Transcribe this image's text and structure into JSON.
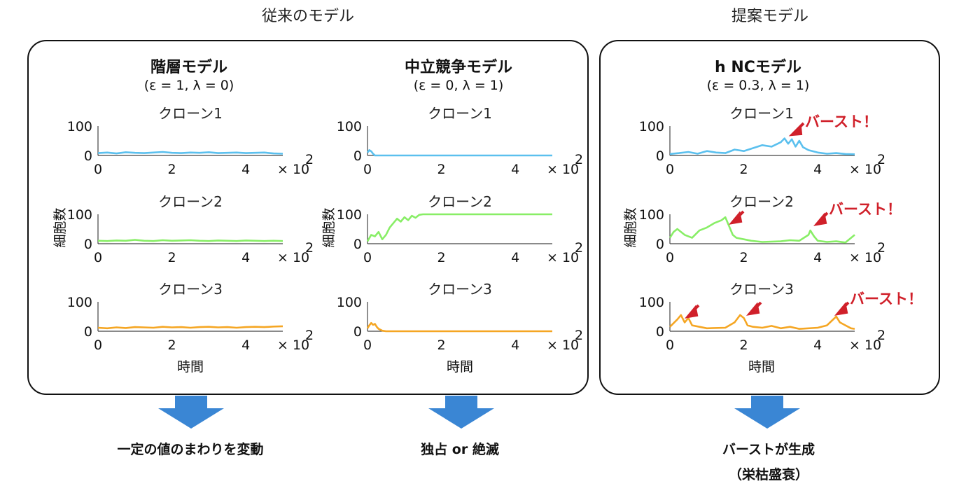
{
  "group_labels": {
    "conventional": "従来のモデル",
    "proposed": "提案モデル"
  },
  "models": [
    {
      "name": "階層モデル",
      "params": "(ε = 1, λ = 0)",
      "result": "一定の値のまわりを変動",
      "result_sub": ""
    },
    {
      "name": "中立競争モデル",
      "params": "(ε = 0, λ = 1)",
      "result": "独占 or 絶滅",
      "result_sub": ""
    },
    {
      "name": "h NCモデル",
      "params": "(ε = 0.3, λ = 1)",
      "result": "バーストが生成",
      "result_sub": "（栄枯盛衰）"
    }
  ],
  "clone_titles": [
    "クローン1",
    "クローン2",
    "クローン3"
  ],
  "axes": {
    "y_ticks": [
      "0",
      "100"
    ],
    "x_ticks": [
      "0",
      "2",
      "4"
    ],
    "x_exponent": "× 10",
    "x_exponent_power": "2",
    "ylabel": "細胞数",
    "xlabel": "時間",
    "xlim": [
      0,
      500
    ],
    "ylim": [
      0,
      100
    ]
  },
  "burst_label": "バースト！",
  "colors": {
    "clone1": "#5bc0ee",
    "clone2": "#88ee66",
    "clone3": "#f5a623",
    "arrow_down": "#3a86d4",
    "burst": "#d0202a"
  },
  "chart_data": [
    {
      "type": "line",
      "model": "階層モデル",
      "clone": "クローン1",
      "x": [
        0,
        25,
        50,
        75,
        100,
        125,
        150,
        175,
        200,
        225,
        250,
        275,
        300,
        325,
        350,
        375,
        400,
        425,
        450,
        475,
        500
      ],
      "y": [
        8,
        10,
        7,
        11,
        9,
        8,
        10,
        12,
        9,
        8,
        10,
        9,
        11,
        8,
        9,
        10,
        8,
        9,
        10,
        7,
        6
      ]
    },
    {
      "type": "line",
      "model": "階層モデル",
      "clone": "クローン2",
      "x": [
        0,
        25,
        50,
        75,
        100,
        125,
        150,
        175,
        200,
        225,
        250,
        275,
        300,
        325,
        350,
        375,
        400,
        425,
        450,
        475,
        500
      ],
      "y": [
        10,
        9,
        11,
        10,
        13,
        10,
        9,
        12,
        10,
        11,
        12,
        10,
        9,
        11,
        10,
        9,
        11,
        10,
        9,
        10,
        9
      ]
    },
    {
      "type": "line",
      "model": "階層モデル",
      "clone": "クローン3",
      "x": [
        0,
        25,
        50,
        75,
        100,
        125,
        150,
        175,
        200,
        225,
        250,
        275,
        300,
        325,
        350,
        375,
        400,
        425,
        450,
        475,
        500
      ],
      "y": [
        12,
        10,
        13,
        11,
        14,
        13,
        12,
        15,
        13,
        14,
        12,
        14,
        15,
        13,
        14,
        12,
        14,
        15,
        14,
        16,
        17
      ]
    },
    {
      "type": "line",
      "model": "中立競争モデル",
      "clone": "クローン1",
      "x": [
        0,
        5,
        10,
        15,
        20,
        30,
        50,
        100,
        200,
        300,
        400,
        500
      ],
      "y": [
        10,
        18,
        14,
        6,
        0,
        0,
        0,
        0,
        0,
        0,
        0,
        0
      ]
    },
    {
      "type": "line",
      "model": "中立競争モデル",
      "clone": "クローン2",
      "x": [
        0,
        10,
        20,
        30,
        40,
        50,
        60,
        70,
        80,
        90,
        100,
        110,
        120,
        130,
        140,
        150,
        200,
        300,
        400,
        500
      ],
      "y": [
        8,
        30,
        25,
        40,
        15,
        30,
        55,
        70,
        85,
        75,
        90,
        80,
        95,
        88,
        98,
        100,
        100,
        100,
        100,
        100
      ]
    },
    {
      "type": "line",
      "model": "中立競争モデル",
      "clone": "クローン3",
      "x": [
        0,
        5,
        10,
        15,
        20,
        25,
        30,
        40,
        50,
        100,
        200,
        300,
        400,
        500
      ],
      "y": [
        10,
        20,
        28,
        22,
        25,
        15,
        8,
        2,
        0,
        0,
        0,
        0,
        0,
        0
      ]
    },
    {
      "type": "line",
      "model": "h NCモデル",
      "clone": "クローン1",
      "x": [
        0,
        25,
        50,
        75,
        100,
        125,
        150,
        175,
        200,
        225,
        250,
        275,
        300,
        310,
        320,
        330,
        340,
        350,
        360,
        375,
        400,
        425,
        450,
        475,
        500
      ],
      "y": [
        5,
        8,
        12,
        6,
        15,
        10,
        8,
        20,
        15,
        25,
        35,
        30,
        45,
        58,
        40,
        55,
        30,
        50,
        28,
        18,
        10,
        6,
        8,
        5,
        4
      ]
    },
    {
      "type": "line",
      "model": "h NCモデル",
      "clone": "クローン2",
      "x": [
        0,
        10,
        20,
        40,
        60,
        80,
        100,
        120,
        140,
        150,
        160,
        170,
        180,
        200,
        220,
        250,
        300,
        325,
        350,
        375,
        380,
        390,
        400,
        425,
        450,
        475,
        500
      ],
      "y": [
        20,
        40,
        50,
        30,
        20,
        45,
        55,
        70,
        80,
        90,
        60,
        30,
        20,
        15,
        10,
        6,
        8,
        12,
        10,
        30,
        45,
        25,
        10,
        6,
        8,
        4,
        30
      ]
    },
    {
      "type": "line",
      "model": "h NCモデル",
      "clone": "クローン3",
      "x": [
        0,
        20,
        30,
        40,
        50,
        60,
        80,
        100,
        150,
        175,
        190,
        200,
        210,
        225,
        250,
        275,
        300,
        325,
        350,
        400,
        425,
        450,
        460,
        475,
        490,
        500
      ],
      "y": [
        15,
        40,
        55,
        30,
        45,
        20,
        15,
        10,
        12,
        30,
        55,
        45,
        20,
        15,
        12,
        18,
        10,
        15,
        8,
        12,
        20,
        50,
        30,
        20,
        10,
        8
      ]
    }
  ]
}
